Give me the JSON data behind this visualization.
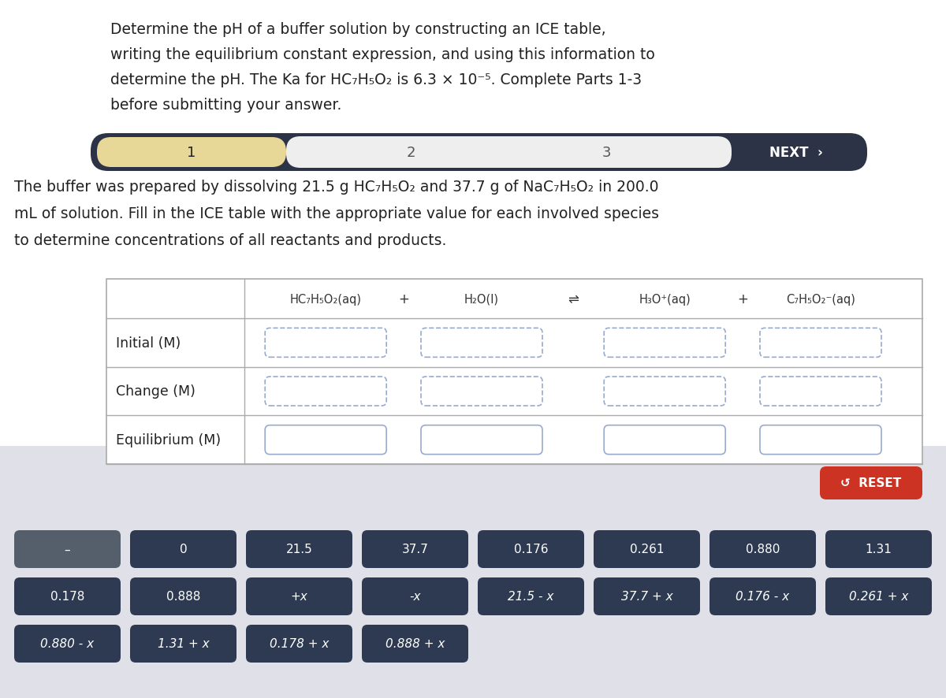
{
  "nav_bg": "#2d3347",
  "nav_selected_bg": "#e8d898",
  "nav_light_bg": "#eeeeee",
  "bottom_bg": "#e0e0e8",
  "reset_bg": "#cc3322",
  "button_bg_dark": "#555e6b",
  "button_bg": "#2d3a52",
  "buttons_row1": [
    "–",
    "0",
    "21.5",
    "37.7",
    "0.176",
    "0.261",
    "0.880",
    "1.31"
  ],
  "buttons_row2": [
    "0.178",
    "0.888",
    "+x",
    "-x",
    "21.5 - x",
    "37.7 + x",
    "0.176 - x",
    "0.261 + x"
  ],
  "buttons_row3": [
    "0.880 - x",
    "1.31 + x",
    "0.178 + x",
    "0.888 + x"
  ],
  "row_labels": [
    "Initial (M)",
    "Change (M)",
    "Equilibrium (M)"
  ]
}
